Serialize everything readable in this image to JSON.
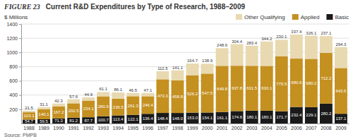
{
  "chart_data": {
    "type": "bar",
    "title": "Current R&D Expenditures by Type of Research, 1988–2009",
    "annotations": [
      "FIGURE 23",
      "Source: PMPB"
    ],
    "ylabel": "$ Millions",
    "categories": [
      "1988",
      "1989",
      "1990",
      "1991",
      "1992",
      "1993",
      "1994",
      "1995",
      "1996",
      "1997",
      "1998",
      "1999",
      "2000",
      "2001",
      "2002",
      "2003",
      "2004",
      "2005",
      "2006",
      "2007",
      "2008",
      "2009"
    ],
    "series": [
      {
        "name": "Basic",
        "color": "#1a1a1a",
        "values": [
          54.7,
          59.5,
          71.3,
          81.2,
          87.7,
          100.7,
          113.4,
          122.1,
          136.4,
          148.4,
          148.0,
          153.0,
          154.1,
          161.1,
          174.6,
          180.1,
          180.1,
          171.7,
          232.4,
          229.1,
          280.2,
          137.1
        ],
        "value_labels": [
          "54.7",
          "59.5",
          "71.3",
          "81.2",
          "87.7",
          "100.7",
          "113.4",
          "122.1",
          "136.4",
          "148.4",
          "148.0",
          "153.0",
          "154.1",
          "161.1",
          "174.6",
          "180.1",
          "180.1",
          "171.7",
          "232.4",
          "229.1",
          "280.2",
          "137.1"
        ]
      },
      {
        "name": "Applied",
        "color": "#c49020",
        "values": [
          103.1,
          140.1,
          167.2,
          202.5,
          234.1,
          280.9,
          236.5,
          261.3,
          246.4,
          473.3,
          458.8,
          526.2,
          547.5,
          649.8,
          637.8,
          631.5,
          630.1,
          775.5,
          680.6,
          680.2,
          712.2,
          643.5
        ]
      },
      {
        "name": "Other Qualifying",
        "color": "#e8d9b0",
        "values": [
          21.5,
          31.1,
          42.3,
          57.6,
          44.9,
          61.1,
          86.1,
          46.5,
          47.1,
          112.5,
          141.1,
          164.7,
          138.9,
          248.6,
          304.4,
          283.4,
          344.2,
          230.1,
          337.4,
          326.1,
          237.1,
          294.3
        ]
      }
    ],
    "stacked": true,
    "ylim": [
      0,
      1400
    ],
    "yticks": [
      200,
      400,
      600,
      800,
      1000,
      1200,
      1400
    ],
    "grid": true,
    "legend": "upper right",
    "data_labels": true
  }
}
